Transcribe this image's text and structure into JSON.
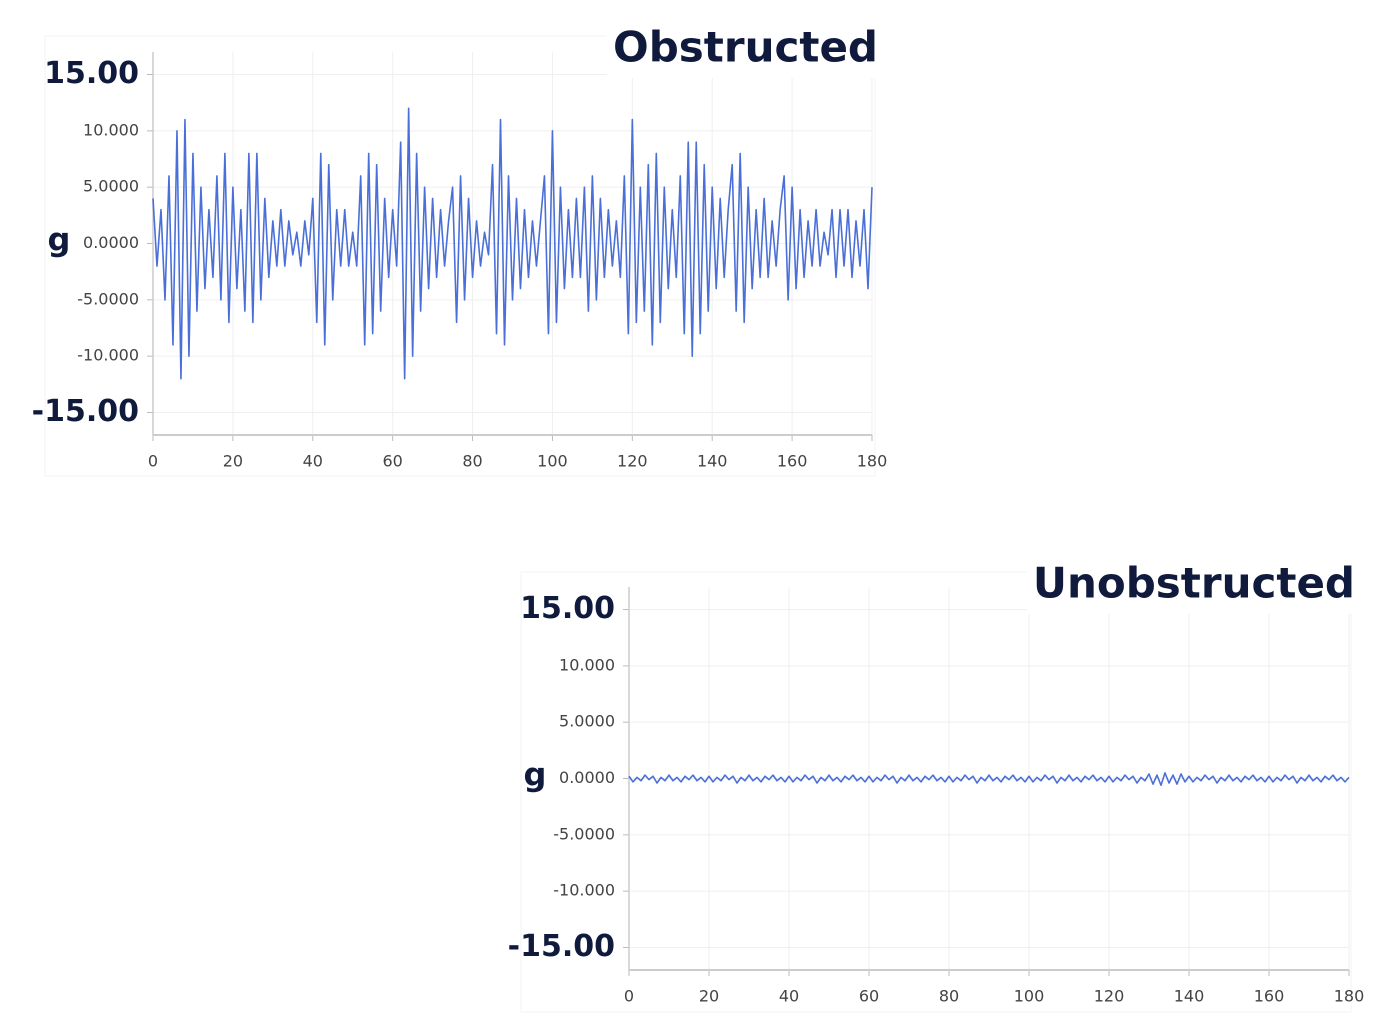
{
  "chart_data": [
    {
      "type": "line",
      "title": "Obstructed",
      "y_label": "g",
      "color": "#4a6fd8",
      "grid": true,
      "xlim": [
        0,
        180
      ],
      "xticks": [
        0,
        20,
        40,
        60,
        80,
        100,
        120,
        140,
        160,
        180
      ],
      "ylim": [
        -17,
        17
      ],
      "yticks": [
        {
          "value": -15,
          "label": "-15.00"
        },
        {
          "value": -10,
          "label": "-10.000"
        },
        {
          "value": -5,
          "label": "-5.0000"
        },
        {
          "value": 0,
          "label": "0.0000"
        },
        {
          "value": 5,
          "label": "5.0000"
        },
        {
          "value": 10,
          "label": "10.000"
        },
        {
          "value": 15,
          "label": "15.00"
        }
      ],
      "x": [
        0,
        1,
        2,
        3,
        4,
        5,
        6,
        7,
        8,
        9,
        10,
        11,
        12,
        13,
        14,
        15,
        16,
        17,
        18,
        19,
        20,
        21,
        22,
        23,
        24,
        25,
        26,
        27,
        28,
        29,
        30,
        31,
        32,
        33,
        34,
        35,
        36,
        37,
        38,
        39,
        40,
        41,
        42,
        43,
        44,
        45,
        46,
        47,
        48,
        49,
        50,
        51,
        52,
        53,
        54,
        55,
        56,
        57,
        58,
        59,
        60,
        61,
        62,
        63,
        64,
        65,
        66,
        67,
        68,
        69,
        70,
        71,
        72,
        73,
        74,
        75,
        76,
        77,
        78,
        79,
        80,
        81,
        82,
        83,
        84,
        85,
        86,
        87,
        88,
        89,
        90,
        91,
        92,
        93,
        94,
        95,
        96,
        97,
        98,
        99,
        100,
        101,
        102,
        103,
        104,
        105,
        106,
        107,
        108,
        109,
        110,
        111,
        112,
        113,
        114,
        115,
        116,
        117,
        118,
        119,
        120,
        121,
        122,
        123,
        124,
        125,
        126,
        127,
        128,
        129,
        130,
        131,
        132,
        133,
        134,
        135,
        136,
        137,
        138,
        139,
        140,
        141,
        142,
        143,
        144,
        145,
        146,
        147,
        148,
        149,
        150,
        151,
        152,
        153,
        154,
        155,
        156,
        157,
        158,
        159,
        160,
        161,
        162,
        163,
        164,
        165,
        166,
        167,
        168,
        169,
        170,
        171,
        172,
        173,
        174,
        175,
        176,
        177,
        178,
        179,
        180
      ],
      "values": [
        4,
        -2,
        3,
        -5,
        6,
        -9,
        10,
        -12,
        11,
        -10,
        8,
        -6,
        5,
        -4,
        3,
        -3,
        6,
        -5,
        8,
        -7,
        5,
        -4,
        3,
        -6,
        8,
        -7,
        8,
        -5,
        4,
        -3,
        2,
        -2,
        3,
        -2,
        2,
        -1,
        1,
        -2,
        2,
        -1,
        4,
        -7,
        8,
        -9,
        7,
        -5,
        3,
        -2,
        3,
        -2,
        1,
        -2,
        6,
        -9,
        8,
        -8,
        7,
        -6,
        4,
        -3,
        3,
        -2,
        9,
        -12,
        12,
        -10,
        8,
        -6,
        5,
        -4,
        4,
        -3,
        3,
        -2,
        2,
        5,
        -7,
        6,
        -5,
        4,
        -3,
        2,
        -2,
        1,
        -1,
        7,
        -8,
        11,
        -9,
        6,
        -5,
        4,
        -4,
        3,
        -3,
        2,
        -2,
        2,
        6,
        -8,
        10,
        -7,
        5,
        -4,
        3,
        -3,
        4,
        -3,
        5,
        -6,
        6,
        -5,
        4,
        -3,
        3,
        -2,
        2,
        -3,
        6,
        -8,
        11,
        -7,
        5,
        -6,
        7,
        -9,
        8,
        -7,
        5,
        -4,
        3,
        -3,
        6,
        -8,
        9,
        -10,
        9,
        -8,
        7,
        -6,
        5,
        -4,
        4,
        -3,
        3,
        7,
        -6,
        8,
        -7,
        5,
        -4,
        3,
        -3,
        4,
        -3,
        2,
        -2,
        3,
        6,
        -5,
        5,
        -4,
        3,
        -3,
        2,
        -2,
        3,
        -2,
        1,
        -1,
        3,
        -3,
        3,
        -2,
        3,
        -3,
        2,
        -2,
        3,
        -4,
        5
      ]
    },
    {
      "type": "line",
      "title": "Unobstructed",
      "y_label": "g",
      "color": "#4a6fd8",
      "grid": true,
      "xlim": [
        0,
        180
      ],
      "xticks": [
        0,
        20,
        40,
        60,
        80,
        100,
        120,
        140,
        160,
        180
      ],
      "ylim": [
        -17,
        17
      ],
      "yticks": [
        {
          "value": -15,
          "label": "-15.00"
        },
        {
          "value": -10,
          "label": "-10.000"
        },
        {
          "value": -5,
          "label": "-5.0000"
        },
        {
          "value": 0,
          "label": "0.0000"
        },
        {
          "value": 5,
          "label": "5.0000"
        },
        {
          "value": 10,
          "label": "10.000"
        },
        {
          "value": 15,
          "label": "15.00"
        }
      ],
      "x": [
        0,
        1,
        2,
        3,
        4,
        5,
        6,
        7,
        8,
        9,
        10,
        11,
        12,
        13,
        14,
        15,
        16,
        17,
        18,
        19,
        20,
        21,
        22,
        23,
        24,
        25,
        26,
        27,
        28,
        29,
        30,
        31,
        32,
        33,
        34,
        35,
        36,
        37,
        38,
        39,
        40,
        41,
        42,
        43,
        44,
        45,
        46,
        47,
        48,
        49,
        50,
        51,
        52,
        53,
        54,
        55,
        56,
        57,
        58,
        59,
        60,
        61,
        62,
        63,
        64,
        65,
        66,
        67,
        68,
        69,
        70,
        71,
        72,
        73,
        74,
        75,
        76,
        77,
        78,
        79,
        80,
        81,
        82,
        83,
        84,
        85,
        86,
        87,
        88,
        89,
        90,
        91,
        92,
        93,
        94,
        95,
        96,
        97,
        98,
        99,
        100,
        101,
        102,
        103,
        104,
        105,
        106,
        107,
        108,
        109,
        110,
        111,
        112,
        113,
        114,
        115,
        116,
        117,
        118,
        119,
        120,
        121,
        122,
        123,
        124,
        125,
        126,
        127,
        128,
        129,
        130,
        131,
        132,
        133,
        134,
        135,
        136,
        137,
        138,
        139,
        140,
        141,
        142,
        143,
        144,
        145,
        146,
        147,
        148,
        149,
        150,
        151,
        152,
        153,
        154,
        155,
        156,
        157,
        158,
        159,
        160,
        161,
        162,
        163,
        164,
        165,
        166,
        167,
        168,
        169,
        170,
        171,
        172,
        173,
        174,
        175,
        176,
        177,
        178,
        179,
        180
      ],
      "values": [
        0.2,
        -0.3,
        0.1,
        -0.2,
        0.3,
        -0.1,
        0.2,
        -0.4,
        0.1,
        -0.2,
        0.3,
        -0.2,
        0.1,
        -0.3,
        0.2,
        -0.1,
        0.3,
        -0.2,
        0.1,
        -0.3,
        0.2,
        -0.3,
        0.1,
        -0.2,
        0.3,
        -0.1,
        0.2,
        -0.4,
        0.1,
        -0.2,
        0.3,
        -0.2,
        0.1,
        -0.3,
        0.2,
        -0.1,
        0.3,
        -0.2,
        0.1,
        -0.3,
        0.2,
        -0.3,
        0.1,
        -0.2,
        0.3,
        -0.1,
        0.2,
        -0.4,
        0.1,
        -0.2,
        0.3,
        -0.2,
        0.1,
        -0.3,
        0.2,
        -0.1,
        0.3,
        -0.2,
        0.1,
        -0.3,
        0.2,
        -0.3,
        0.1,
        -0.2,
        0.3,
        -0.1,
        0.2,
        -0.4,
        0.1,
        -0.2,
        0.3,
        -0.2,
        0.1,
        -0.3,
        0.2,
        -0.1,
        0.3,
        -0.2,
        0.1,
        -0.3,
        0.2,
        -0.3,
        0.1,
        -0.2,
        0.3,
        -0.1,
        0.2,
        -0.4,
        0.1,
        -0.2,
        0.3,
        -0.2,
        0.1,
        -0.3,
        0.2,
        -0.1,
        0.3,
        -0.2,
        0.1,
        -0.3,
        0.2,
        -0.3,
        0.1,
        -0.2,
        0.3,
        -0.1,
        0.2,
        -0.4,
        0.1,
        -0.2,
        0.3,
        -0.2,
        0.1,
        -0.3,
        0.2,
        -0.1,
        0.3,
        -0.2,
        0.1,
        -0.3,
        0.2,
        -0.3,
        0.1,
        -0.2,
        0.3,
        -0.1,
        0.2,
        -0.4,
        0.1,
        -0.2,
        0.4,
        -0.5,
        0.3,
        -0.6,
        0.5,
        -0.4,
        0.3,
        -0.5,
        0.4,
        -0.3,
        0.2,
        -0.3,
        0.1,
        -0.2,
        0.3,
        -0.1,
        0.2,
        -0.4,
        0.1,
        -0.2,
        0.3,
        -0.2,
        0.1,
        -0.3,
        0.2,
        -0.1,
        0.3,
        -0.2,
        0.1,
        -0.3,
        0.2,
        -0.3,
        0.1,
        -0.2,
        0.3,
        -0.1,
        0.2,
        -0.4,
        0.1,
        -0.2,
        0.3,
        -0.2,
        0.1,
        -0.3,
        0.2,
        -0.1,
        0.3,
        -0.2,
        0.1,
        -0.3,
        0.1
      ]
    }
  ]
}
